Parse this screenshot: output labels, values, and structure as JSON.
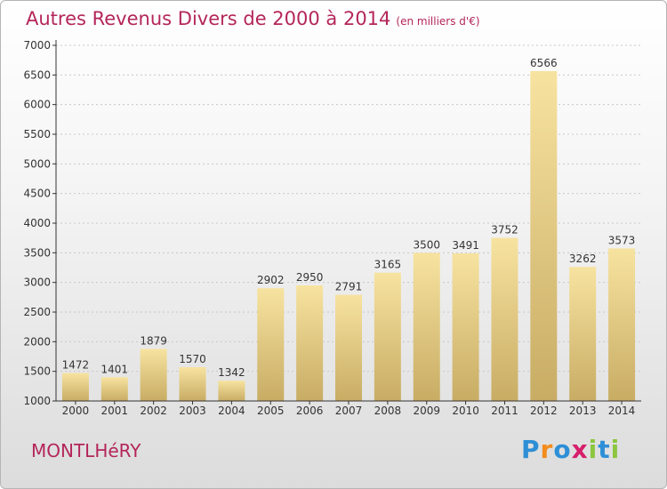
{
  "title": "Autres Revenus Divers de 2000 à 2014",
  "subtitle": "(en milliers d'€)",
  "city": "MONTLHéRY",
  "logo": {
    "letters": [
      "P",
      "r",
      "o",
      "x",
      "i",
      "t",
      "i"
    ],
    "colors": [
      "#2e8fd6",
      "#f28c1d",
      "#2e8fd6",
      "#d6206b",
      "#8cc63f",
      "#2e8fd6",
      "#8cc63f"
    ]
  },
  "colors": {
    "title": "#b4265a",
    "bar_light": "#f7e3a0",
    "bar_dark": "#c8ac64",
    "axis": "#333333",
    "grid": "#c8c8c8"
  },
  "chart_data": {
    "type": "bar",
    "title": "Autres Revenus Divers de 2000 à 2014",
    "subtitle": "(en milliers d'€)",
    "categories": [
      "2000",
      "2001",
      "2002",
      "2003",
      "2004",
      "2005",
      "2006",
      "2007",
      "2008",
      "2009",
      "2010",
      "2011",
      "2012",
      "2013",
      "2014"
    ],
    "values": [
      1472,
      1401,
      1879,
      1570,
      1342,
      2902,
      2950,
      2791,
      3165,
      3500,
      3491,
      3752,
      6566,
      3262,
      3573
    ],
    "ylim": [
      1000,
      7000
    ],
    "yticks": [
      1000,
      1500,
      2000,
      2500,
      3000,
      3500,
      4000,
      4500,
      5000,
      5500,
      6000,
      6500,
      7000
    ],
    "grid": true,
    "xlabel": "",
    "ylabel": ""
  }
}
